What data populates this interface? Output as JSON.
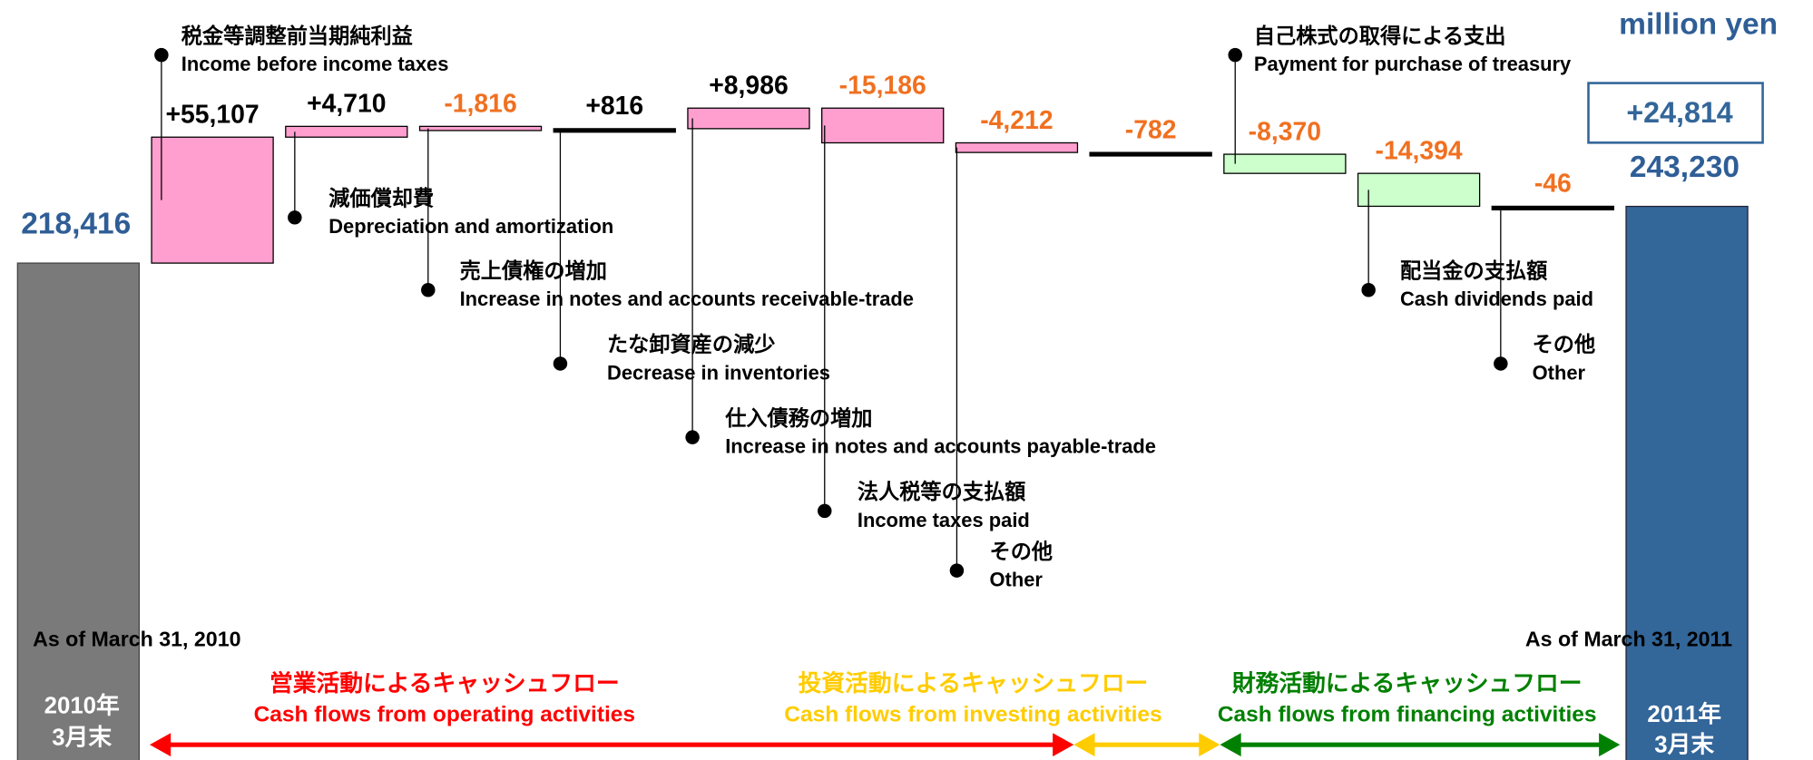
{
  "chart_data": {
    "type": "waterfall",
    "unit": "million yen",
    "start": {
      "value": 218416,
      "label": "218,416",
      "en": "As of March 31, 2010",
      "jp": [
        "2010年",
        "3月末"
      ],
      "color": "#7a7a7a"
    },
    "end": {
      "value": 243230,
      "label": "243,230",
      "en": "As of March 31, 2011",
      "jp": [
        "2011年",
        "3月末"
      ],
      "color": "#336699"
    },
    "net_change": "+24,814",
    "steps": [
      {
        "value": 55107,
        "label": "+55,107",
        "jp": "税金等調整前当期純利益",
        "en": "Income before income taxes",
        "color": "#ff9fd0"
      },
      {
        "value": 4710,
        "label": "+4,710",
        "jp": "減価償却費",
        "en": "Depreciation and amortization",
        "color": "#ff9fd0"
      },
      {
        "value": -1816,
        "label": "-1,816",
        "jp": "売上債権の増加",
        "en": "Increase in notes and accounts receivable-trade",
        "color": "#ff9fd0"
      },
      {
        "value": 816,
        "label": "+816",
        "jp": "たな卸資産の減少",
        "en": "Decrease in inventories",
        "color": "#000000"
      },
      {
        "value": 8986,
        "label": "+8,986",
        "jp": "仕入債務の増加",
        "en": "Increase in notes and accounts payable-trade",
        "color": "#ff9fd0"
      },
      {
        "value": -15186,
        "label": "-15,186",
        "jp": "法人税等の支払額",
        "en": "Income taxes paid",
        "color": "#ff9fd0"
      },
      {
        "value": -4212,
        "label": "-4,212",
        "jp": "その他",
        "en": "Other",
        "color": "#ff9fd0"
      },
      {
        "value": -782,
        "label": "-782",
        "color": "#000000"
      },
      {
        "value": -8370,
        "label": "-8,370",
        "jp": "自己株式の取得による支出",
        "en": "Payment for purchase of treasury",
        "color": "#ccffcc"
      },
      {
        "value": -14394,
        "label": "-14,394",
        "jp": "配当金の支払額",
        "en": "Cash dividends paid",
        "color": "#ccffcc"
      },
      {
        "value": -46,
        "label": "-46",
        "jp": "その他",
        "en": "Other",
        "color": "#000000"
      }
    ],
    "sections": [
      {
        "jp": "営業活動によるキャッシュフロー",
        "en": "Cash flows from operating activities",
        "color": "#ff0000"
      },
      {
        "jp": "投資活動によるキャッシュフロー",
        "en": "Cash flows from investing activities",
        "color": "#ffcc00"
      },
      {
        "jp": "財務活動によるキャッシュフロー",
        "en": "Cash flows from financing activities",
        "color": "#008000"
      }
    ]
  }
}
